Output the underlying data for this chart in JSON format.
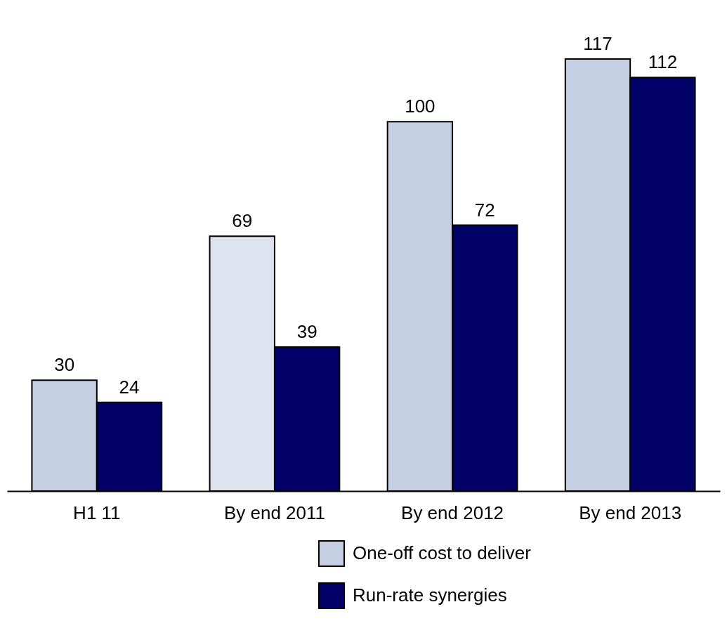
{
  "chart_data": {
    "type": "bar",
    "categories": [
      "H1 11",
      "By end 2011",
      "By end 2012",
      "By end 2013"
    ],
    "series": [
      {
        "name": "One-off cost to deliver",
        "color": "#c5cfe2",
        "colors": [
          "#c5cfe2",
          "#dee4ef",
          "#c5cfe2",
          "#c5cfe2"
        ],
        "values": [
          30,
          69,
          100,
          117
        ]
      },
      {
        "name": "Run-rate synergies",
        "color": "#000066",
        "values": [
          24,
          39,
          72,
          112
        ]
      }
    ],
    "data_labels": true,
    "legend": "bottom",
    "grid": false
  }
}
